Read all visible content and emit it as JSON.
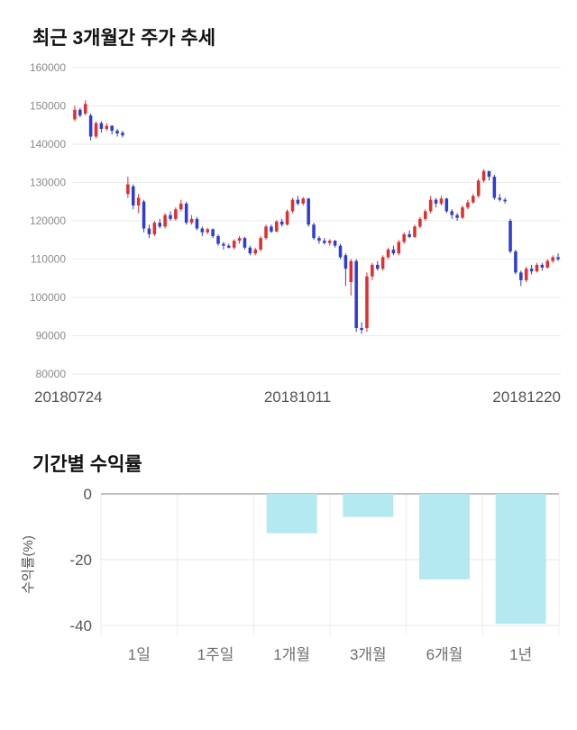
{
  "price_chart": {
    "title": "최근 3개월간 주가 추세"
  },
  "returns_chart": {
    "title": "기간별 수익률"
  },
  "chart_data": [
    {
      "type": "candlestick",
      "title": "최근 3개월간 주가 추세",
      "ylim": [
        80000,
        160000
      ],
      "y_ticks": [
        80000,
        90000,
        100000,
        110000,
        120000,
        130000,
        140000,
        150000,
        160000
      ],
      "x_labels": [
        "20180724",
        "20181011",
        "20181220"
      ],
      "up_color": "#e12e2e",
      "down_color": "#2f3cd3",
      "grid": true,
      "candles": [
        [
          146500,
          150000,
          146000,
          149000
        ],
        [
          149000,
          149500,
          147000,
          147500
        ],
        [
          148000,
          151500,
          147500,
          150500
        ],
        [
          147500,
          148000,
          141000,
          142000
        ],
        [
          142000,
          146000,
          141500,
          145500
        ],
        [
          145500,
          146000,
          143000,
          144000
        ],
        [
          144000,
          145500,
          143500,
          144800
        ],
        [
          144800,
          145000,
          142500,
          143500
        ],
        [
          143500,
          144000,
          142000,
          142800
        ],
        [
          143000,
          143500,
          141800,
          142300
        ],
        [
          127000,
          131500,
          126000,
          129500
        ],
        [
          129000,
          129500,
          123000,
          124000
        ],
        [
          124000,
          127000,
          122000,
          126000
        ],
        [
          125000,
          125500,
          117000,
          118000
        ],
        [
          118000,
          119000,
          115500,
          116500
        ],
        [
          116500,
          120000,
          116000,
          119500
        ],
        [
          119500,
          120500,
          118000,
          118500
        ],
        [
          118500,
          122000,
          118000,
          121500
        ],
        [
          121500,
          122500,
          120000,
          120500
        ],
        [
          120500,
          123500,
          120000,
          123000
        ],
        [
          123000,
          125500,
          122500,
          124500
        ],
        [
          124500,
          125000,
          119000,
          119500
        ],
        [
          119500,
          121500,
          119000,
          120500
        ],
        [
          120500,
          121000,
          117500,
          118000
        ],
        [
          118000,
          118500,
          116000,
          117000
        ],
        [
          117000,
          118200,
          116500,
          117800
        ],
        [
          117800,
          118000,
          115500,
          116000
        ],
        [
          116000,
          116500,
          113500,
          114000
        ],
        [
          114000,
          114500,
          112500,
          113500
        ],
        [
          113500,
          114000,
          112800,
          113000
        ],
        [
          113000,
          115200,
          112500,
          114800
        ],
        [
          114800,
          116000,
          114000,
          115500
        ],
        [
          115500,
          115800,
          112500,
          113000
        ],
        [
          113000,
          113500,
          111000,
          111500
        ],
        [
          111500,
          113000,
          111000,
          112500
        ],
        [
          112500,
          116000,
          112000,
          115500
        ],
        [
          115500,
          119000,
          115000,
          118500
        ],
        [
          118500,
          119000,
          116800,
          117200
        ],
        [
          117200,
          120200,
          117000,
          119800
        ],
        [
          119800,
          120500,
          118500,
          119000
        ],
        [
          119000,
          123000,
          118800,
          122500
        ],
        [
          122500,
          126000,
          122000,
          125500
        ],
        [
          125500,
          126500,
          124000,
          124500
        ],
        [
          124500,
          126200,
          124000,
          125800
        ],
        [
          125800,
          126000,
          118500,
          119000
        ],
        [
          119000,
          119500,
          115000,
          115500
        ],
        [
          115500,
          116000,
          114000,
          114800
        ],
        [
          114800,
          115500,
          113800,
          114200
        ],
        [
          114200,
          115200,
          113500,
          114800
        ],
        [
          114800,
          115000,
          113000,
          113500
        ],
        [
          113500,
          114000,
          110000,
          110500
        ],
        [
          111000,
          111500,
          103000,
          107500
        ],
        [
          104000,
          110000,
          100500,
          109500
        ],
        [
          109500,
          110000,
          91000,
          92000
        ],
        [
          92000,
          93500,
          90500,
          91500
        ],
        [
          92000,
          106500,
          91000,
          105500
        ],
        [
          105500,
          109000,
          104500,
          108500
        ],
        [
          108500,
          109500,
          107000,
          107500
        ],
        [
          107500,
          111000,
          107000,
          110500
        ],
        [
          110500,
          113000,
          110000,
          112500
        ],
        [
          112500,
          113500,
          111000,
          111500
        ],
        [
          111500,
          115000,
          111000,
          114500
        ],
        [
          114500,
          117000,
          114000,
          116500
        ],
        [
          116500,
          117500,
          115500,
          115800
        ],
        [
          115800,
          119000,
          115500,
          118500
        ],
        [
          118500,
          121000,
          118000,
          120500
        ],
        [
          120500,
          123000,
          120000,
          122500
        ],
        [
          122500,
          126500,
          122000,
          125500
        ],
        [
          125500,
          126000,
          123500,
          124500
        ],
        [
          124500,
          126500,
          124000,
          125800
        ],
        [
          125800,
          126000,
          122000,
          122500
        ],
        [
          122500,
          123000,
          120500,
          121500
        ],
        [
          121500,
          122000,
          120000,
          120800
        ],
        [
          120800,
          124000,
          120500,
          123500
        ],
        [
          123500,
          125500,
          123000,
          124800
        ],
        [
          124800,
          127000,
          124500,
          126500
        ],
        [
          126500,
          131000,
          126000,
          130500
        ],
        [
          130500,
          133500,
          130000,
          133000
        ],
        [
          133000,
          133000,
          130500,
          131500
        ],
        [
          131500,
          132000,
          125500,
          126000
        ],
        [
          126000,
          127000,
          125000,
          125500
        ],
        [
          125500,
          126000,
          124500,
          125200
        ],
        [
          120000,
          120500,
          111500,
          112000
        ],
        [
          112000,
          112500,
          106000,
          106500
        ],
        [
          106500,
          107000,
          103000,
          104500
        ],
        [
          104500,
          108000,
          104000,
          107500
        ],
        [
          107500,
          108500,
          106000,
          106800
        ],
        [
          106800,
          109000,
          106500,
          108500
        ],
        [
          108500,
          109000,
          107000,
          107800
        ],
        [
          107800,
          110000,
          107500,
          109500
        ],
        [
          109500,
          111000,
          109000,
          110500
        ],
        [
          110500,
          111500,
          109500,
          110000
        ]
      ]
    },
    {
      "type": "bar",
      "title": "기간별 수익률",
      "ylabel": "수익률(%)",
      "categories": [
        "1일",
        "1주일",
        "1개월",
        "3개월",
        "6개월",
        "1년"
      ],
      "values": [
        0,
        0,
        -12,
        -7,
        -26,
        -39.5
      ],
      "ylim": [
        -43,
        0
      ],
      "y_ticks": [
        0,
        -20,
        -40
      ],
      "bar_color": "#b5e9f2",
      "legend": "none"
    }
  ]
}
